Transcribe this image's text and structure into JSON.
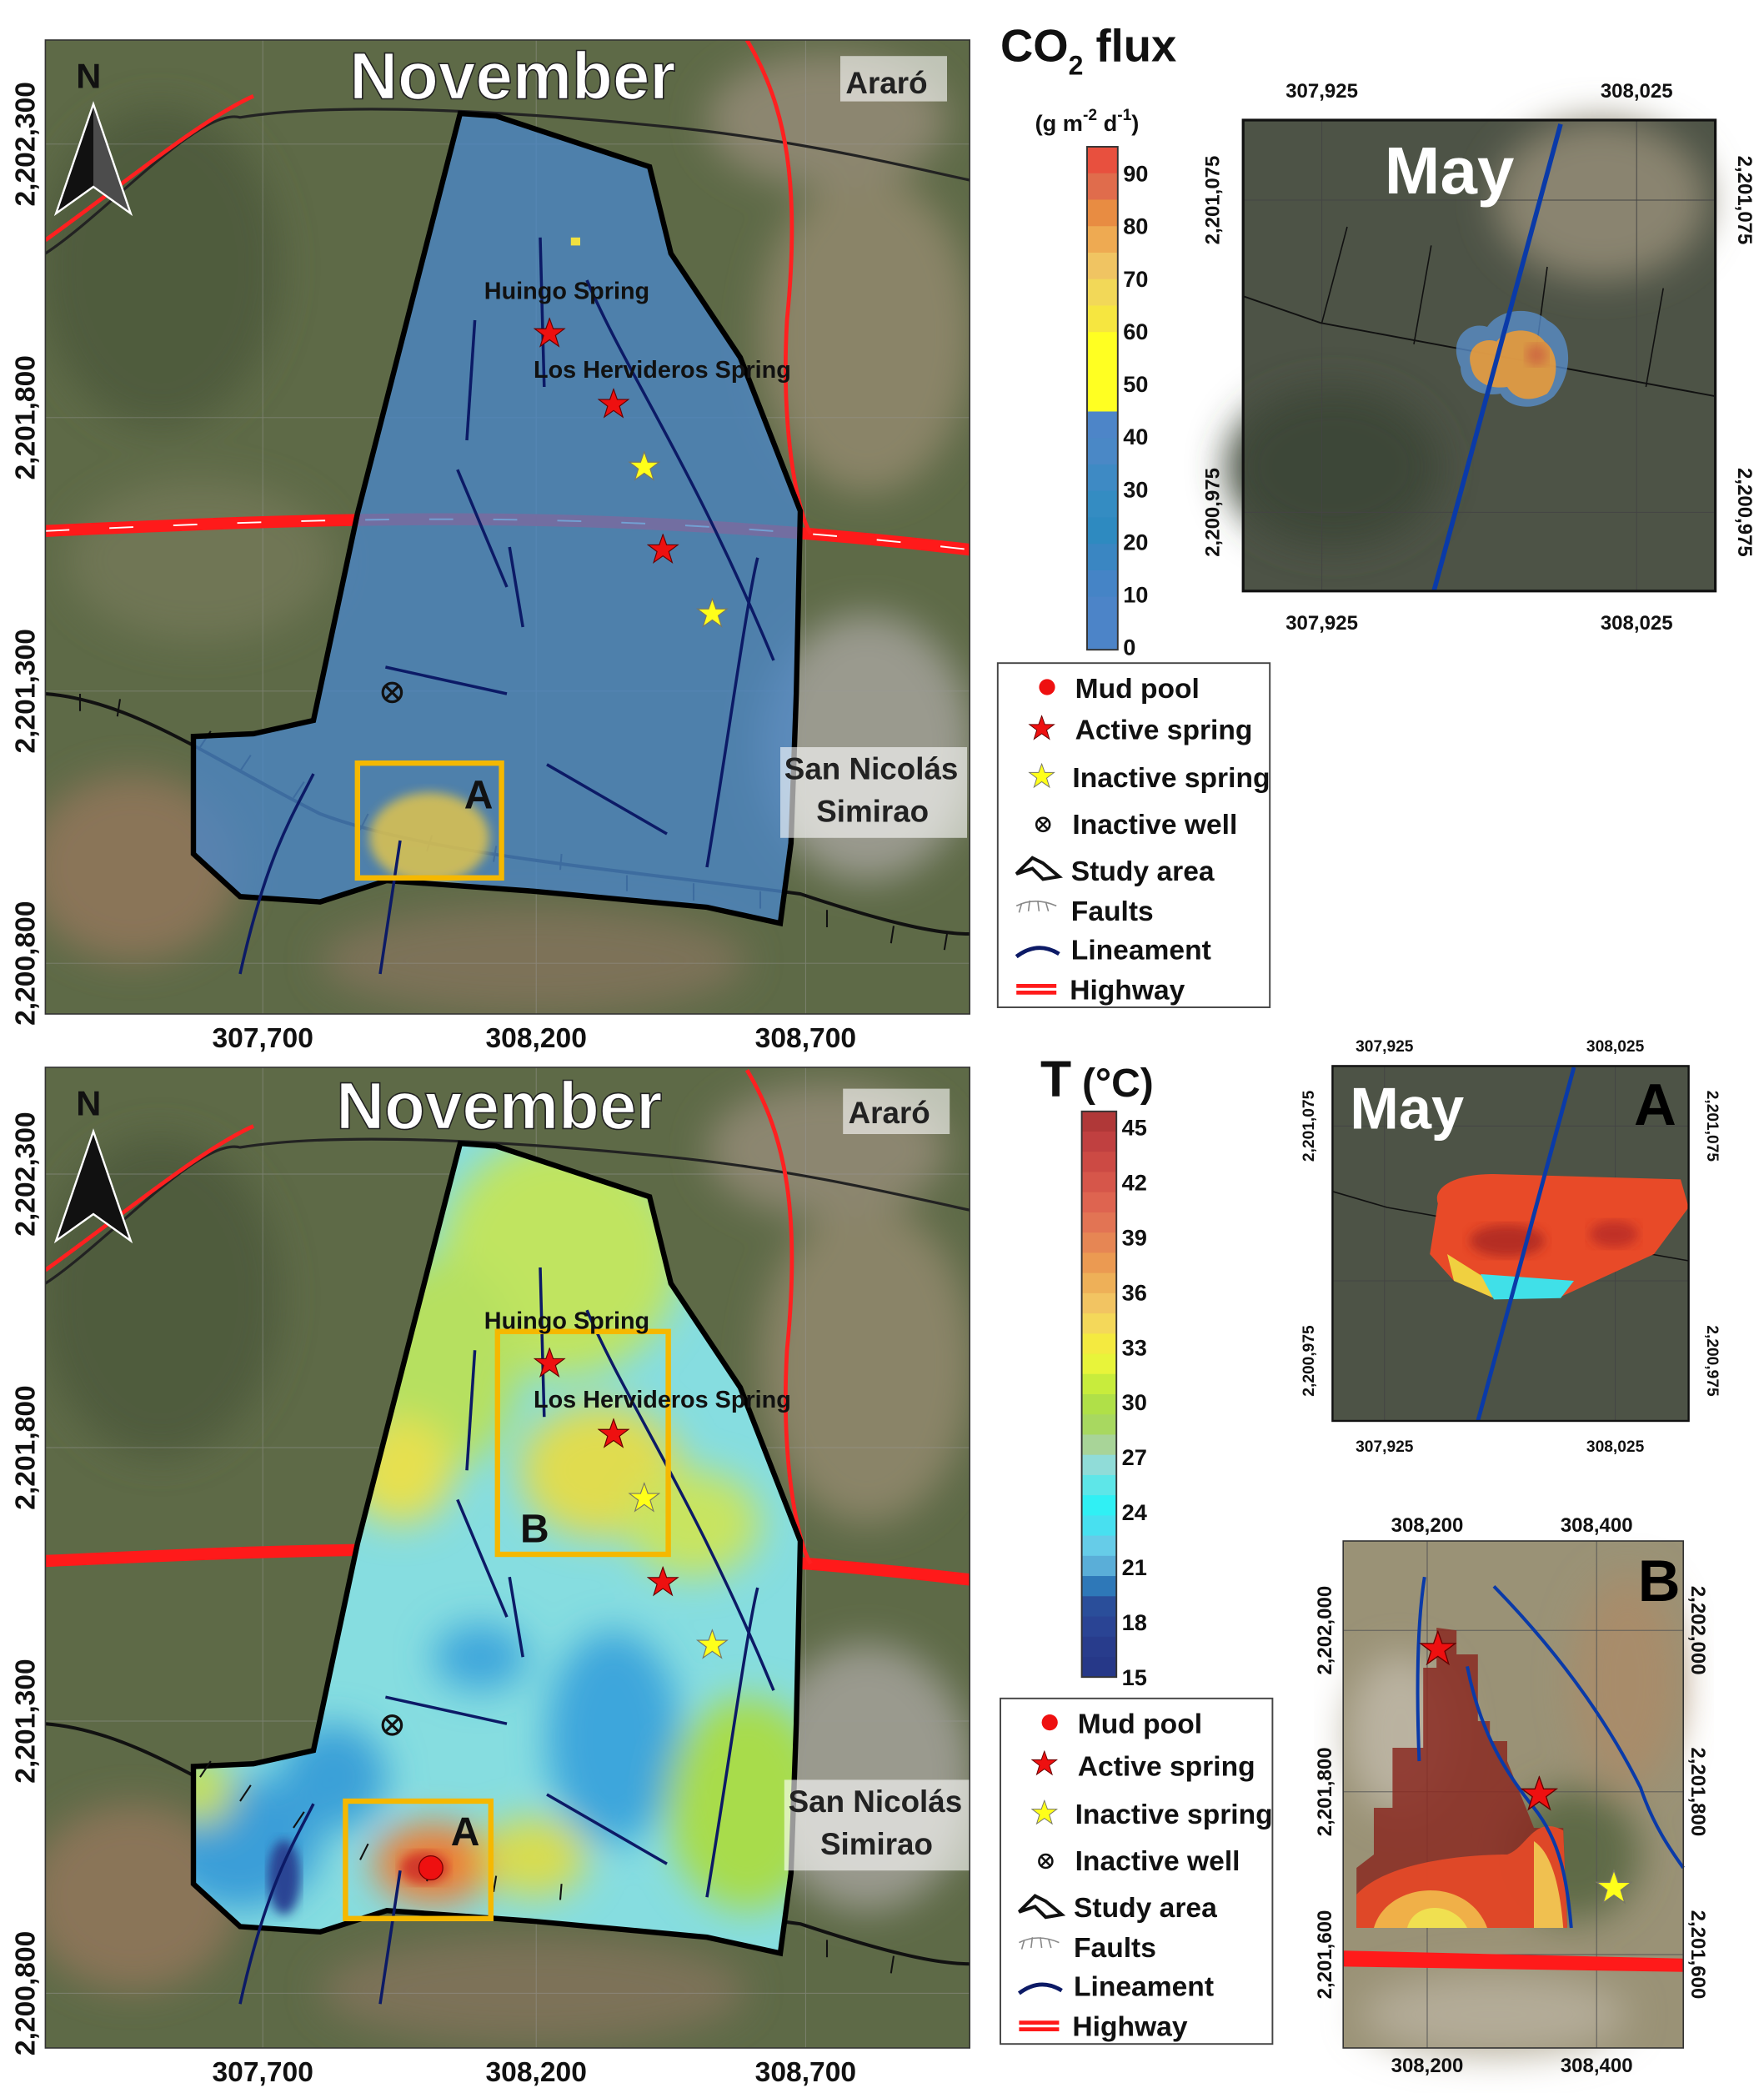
{
  "top_map": {
    "title": "November",
    "north": "N",
    "town_ararо": "Araró",
    "town_san_nicolas": "San Nicolás",
    "town_simirao": "Simirao",
    "huingo": "Huingo Spring",
    "hervideros": "Los Hervideros Spring",
    "box_a": "A",
    "x_ticks": [
      "307,700",
      "308,200",
      "308,700"
    ],
    "y_ticks": [
      "2,202,300",
      "2,201,800",
      "2,201,300",
      "2,200,800"
    ]
  },
  "co2_scale": {
    "title_main": "CO",
    "title_sub": "2",
    "title_rest": " flux",
    "unit": [
      "(g m",
      "-2",
      " d",
      "-1",
      ")"
    ],
    "ticks": [
      "90",
      "80",
      "70",
      "60",
      "50",
      "40",
      "30",
      "20",
      "10",
      "0"
    ],
    "colors": [
      "#e8503e",
      "#e06c4c",
      "#e88c42",
      "#eeaa52",
      "#f0c462",
      "#f2d858",
      "#f6e640",
      "#ffff22",
      "#ffff22",
      "#ffff22",
      "#4d85c8",
      "#4a88c6",
      "#3e8ac4",
      "#348cc2",
      "#2e8ac0",
      "#3a86c2",
      "#4584c6",
      "#4c84c8",
      "#4c84c8"
    ]
  },
  "inset_co2": {
    "title": "May",
    "x_ticks": [
      "307,925",
      "308,025"
    ],
    "y_ticks": [
      "2,201,075",
      "2,200,975"
    ]
  },
  "legend": {
    "mud_pool": "Mud pool",
    "active_spring": "Active spring",
    "inactive_spring": "Inactive spring",
    "inactive_well": "Inactive well",
    "study_area": "Study area",
    "faults": "Faults",
    "lineament": "Lineament",
    "highway": "Highway"
  },
  "bottom_map": {
    "title": "November",
    "north": "N",
    "town_ararо": "Araró",
    "town_san_nicolas": "San Nicolás",
    "town_simirao": "Simirao",
    "huingo": "Huingo Spring",
    "hervideros": "Los Hervideros Spring",
    "box_a": "A",
    "box_b": "B",
    "x_ticks": [
      "307,700",
      "308,200",
      "308,700"
    ],
    "y_ticks": [
      "2,202,300",
      "2,201,800",
      "2,201,300",
      "2,200,800"
    ]
  },
  "t_scale": {
    "title_main": "T",
    "title_unit": "(°C)",
    "ticks": [
      "45",
      "42",
      "39",
      "36",
      "33",
      "30",
      "27",
      "24",
      "21",
      "18",
      "15"
    ],
    "colors": [
      "#b03838",
      "#c04040",
      "#cc4a44",
      "#d6564a",
      "#de6450",
      "#e27454",
      "#e68654",
      "#eb9a52",
      "#eeb058",
      "#f2c462",
      "#f4d85a",
      "#f4ea40",
      "#e8f43a",
      "#c8ec3c",
      "#b0e048",
      "#a8d860",
      "#a8d498",
      "#90dcd8",
      "#5ee6e8",
      "#30f0f4",
      "#48e0f0",
      "#66cce8",
      "#5aaed8",
      "#2e78b8",
      "#2a4e9a",
      "#2a4494",
      "#283c8c",
      "#263888"
    ]
  },
  "inset_t_a": {
    "title": "May",
    "label": "A",
    "x_ticks": [
      "307,925",
      "308,025"
    ],
    "y_ticks": [
      "2,201,075",
      "2,200,975"
    ]
  },
  "inset_t_b": {
    "label": "B",
    "x_ticks": [
      "308,200",
      "308,400"
    ],
    "y_ticks": [
      "2,202,000",
      "2,201,800",
      "2,201,600"
    ]
  }
}
